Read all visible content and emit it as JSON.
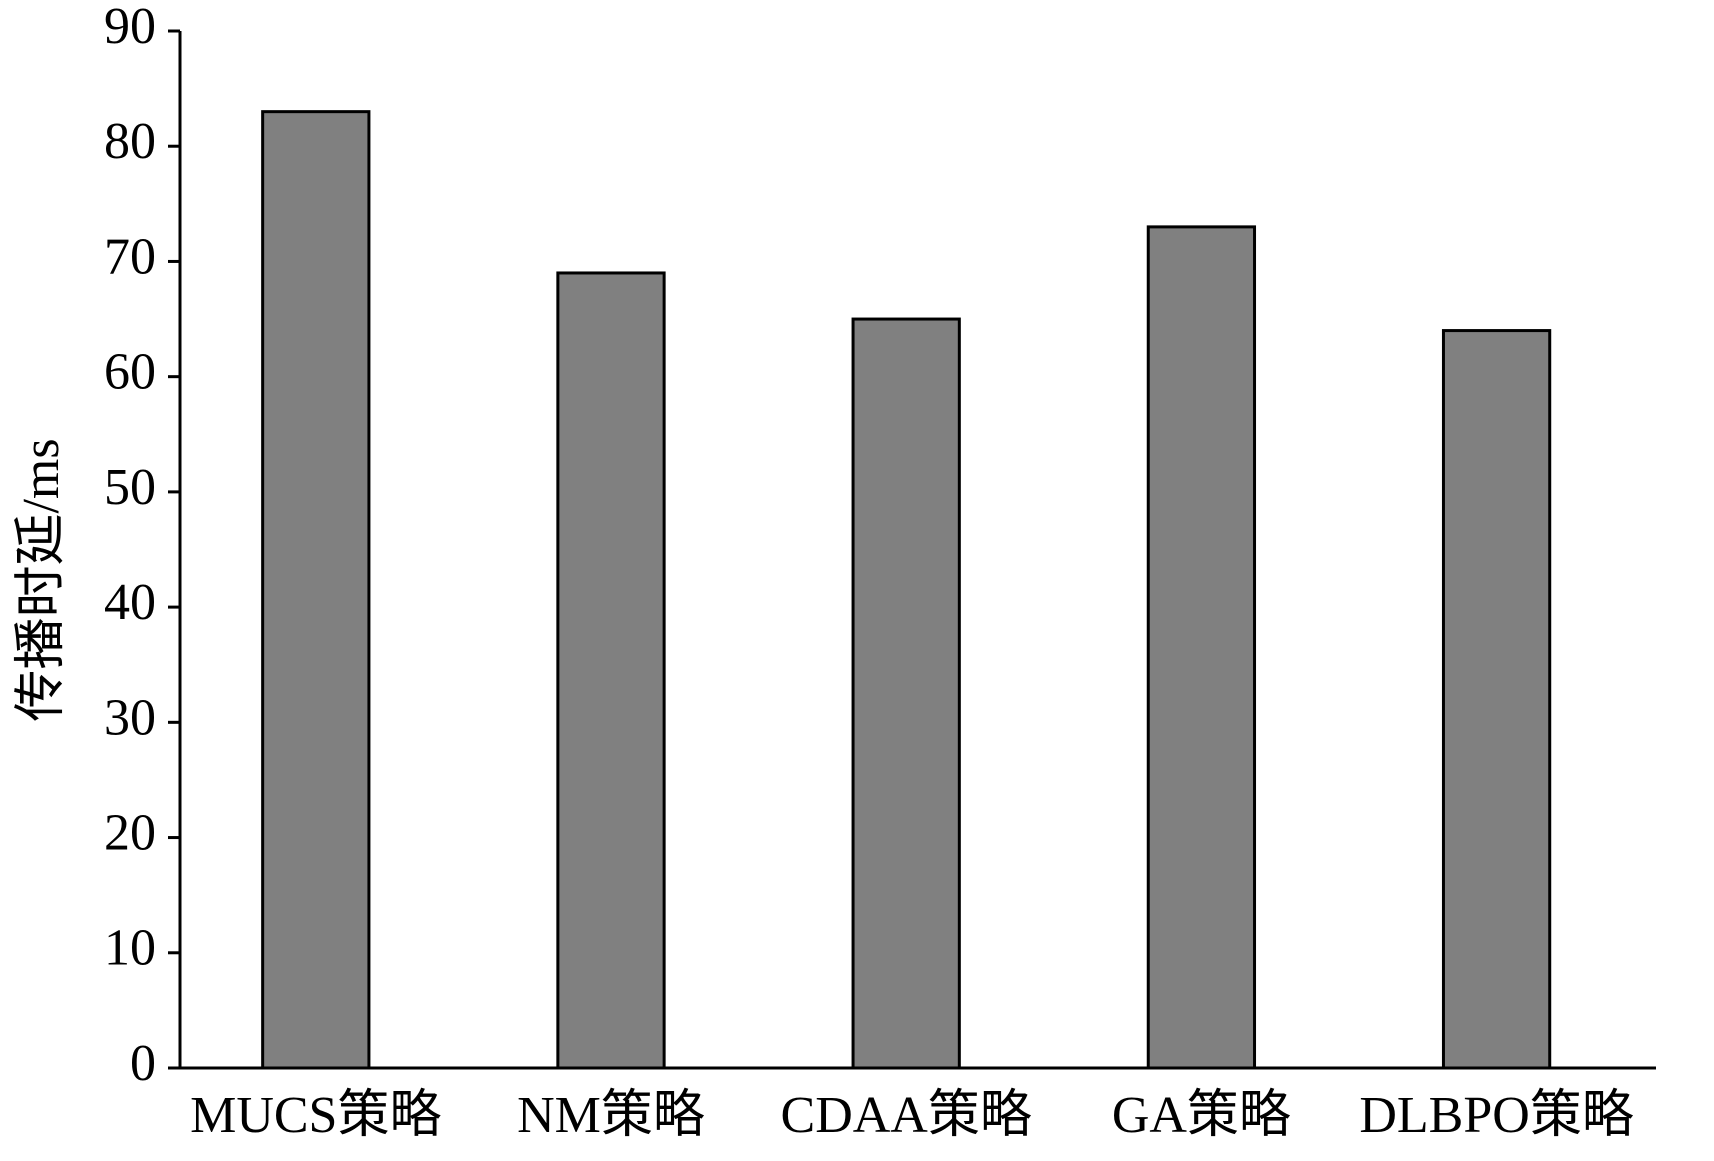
{
  "chart_data": {
    "type": "bar",
    "y_label": "传播时延/ms",
    "categories": [
      "MUCS策略",
      "NM策略",
      "CDAA策略",
      "GA策略",
      "DLBPO策略"
    ],
    "values": [
      83,
      69,
      65,
      73,
      64
    ],
    "color": "#808080",
    "ylim": [
      0,
      90
    ],
    "yticks": [
      0,
      10,
      20,
      30,
      40,
      50,
      60,
      70,
      80,
      90
    ],
    "grid": false
  }
}
